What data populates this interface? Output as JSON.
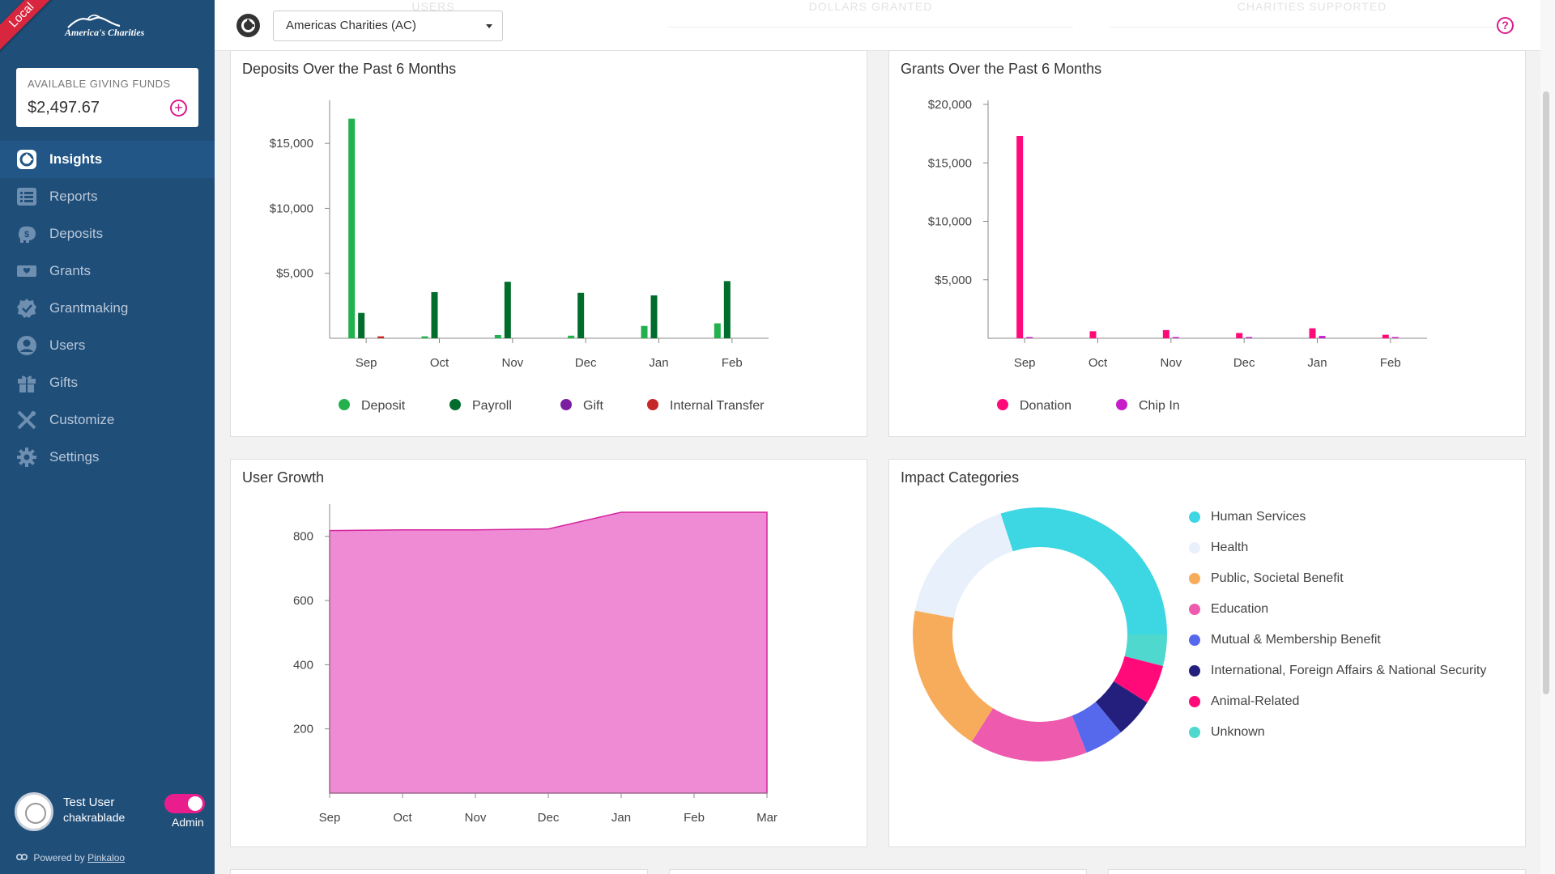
{
  "env_badge": "Local",
  "logo_text": "America's Charities",
  "funds": {
    "label": "AVAILABLE GIVING FUNDS",
    "amount": "$2,497.67"
  },
  "nav": [
    {
      "label": "Insights",
      "icon": "insights-icon",
      "active": true
    },
    {
      "label": "Reports",
      "icon": "reports-icon"
    },
    {
      "label": "Deposits",
      "icon": "deposits-icon"
    },
    {
      "label": "Grants",
      "icon": "grants-icon"
    },
    {
      "label": "Grantmaking",
      "icon": "grantmaking-icon"
    },
    {
      "label": "Users",
      "icon": "users-icon"
    },
    {
      "label": "Gifts",
      "icon": "gifts-icon"
    },
    {
      "label": "Customize",
      "icon": "customize-icon"
    },
    {
      "label": "Settings",
      "icon": "settings-icon"
    }
  ],
  "user": {
    "name": "Test User",
    "handle": "chakrablade",
    "role": "Admin"
  },
  "footer": {
    "prefix": "Powered by",
    "brand": "Pinkaloo"
  },
  "topbar": {
    "org_selected": "Americas Charities (AC)",
    "ghost_stats": [
      "USERS",
      "DOLLARS GRANTED",
      "CHARITIES SUPPORTED"
    ],
    "help_label": "?"
  },
  "colors": {
    "sidebar": "#1f4e79",
    "accent": "#e91e8c",
    "deposit": "#22b14c",
    "payroll": "#006d2c",
    "gift": "#7b1fa2",
    "internal_transfer": "#c62828",
    "donation": "#ff0a78",
    "chip_in": "#c61dc9",
    "user_growth": "#ef8ad4"
  },
  "chart_data": [
    {
      "title": "Deposits Over the Past 6 Months",
      "type": "bar",
      "categories": [
        "Sep",
        "Oct",
        "Nov",
        "Dec",
        "Jan",
        "Feb"
      ],
      "ytick_labels": [
        "$5,000",
        "$10,000",
        "$15,000"
      ],
      "ylim": [
        0,
        18000
      ],
      "yticks": [
        5000,
        10000,
        15000
      ],
      "series": [
        {
          "name": "Deposit",
          "color": "#22b14c",
          "values": [
            16900,
            150,
            250,
            200,
            950,
            1150
          ]
        },
        {
          "name": "Payroll",
          "color": "#006d2c",
          "values": [
            1950,
            3550,
            4350,
            3500,
            3300,
            4400
          ]
        },
        {
          "name": "Gift",
          "color": "#7b1fa2",
          "values": [
            0,
            0,
            0,
            0,
            0,
            0
          ]
        },
        {
          "name": "Internal Transfer",
          "color": "#c62828",
          "values": [
            150,
            0,
            0,
            0,
            0,
            0
          ]
        }
      ],
      "legend": "bottom"
    },
    {
      "title": "Grants Over the Past 6 Months",
      "type": "bar",
      "categories": [
        "Sep",
        "Oct",
        "Nov",
        "Dec",
        "Jan",
        "Feb"
      ],
      "ytick_labels": [
        "$5,000",
        "$10,000",
        "$15,000",
        "$20,000"
      ],
      "ylim": [
        0,
        20000
      ],
      "yticks": [
        5000,
        10000,
        15000,
        20000
      ],
      "series": [
        {
          "name": "Donation",
          "color": "#ff0a78",
          "values": [
            17300,
            600,
            700,
            450,
            850,
            300
          ]
        },
        {
          "name": "Chip In",
          "color": "#c61dc9",
          "values": [
            60,
            0,
            40,
            40,
            200,
            20
          ]
        }
      ],
      "legend": "bottom"
    },
    {
      "title": "User Growth",
      "type": "area",
      "x": [
        "Sep",
        "Oct",
        "Nov",
        "Dec",
        "Jan",
        "Feb",
        "Mar"
      ],
      "values": [
        818,
        820,
        820,
        823,
        875,
        875,
        875
      ],
      "yticks": [
        200,
        400,
        600,
        800
      ],
      "ylim": [
        0,
        880
      ],
      "color": "#ef8ad4",
      "line_color": "#d3249d"
    },
    {
      "title": "Impact Categories",
      "type": "pie",
      "donut": true,
      "slices": [
        {
          "label": "Human Services",
          "color": "#3dd6e3",
          "value": 30
        },
        {
          "label": "Health",
          "color": "#e8f0fb",
          "value": 17
        },
        {
          "label": "Public, Societal Benefit",
          "color": "#f7ac5c",
          "value": 19
        },
        {
          "label": "Education",
          "color": "#ee5aae",
          "value": 15
        },
        {
          "label": "Mutual & Membership Benefit",
          "color": "#5669ec",
          "value": 5
        },
        {
          "label": "International, Foreign Affairs & National Security",
          "color": "#241e7c",
          "value": 5
        },
        {
          "label": "Animal-Related",
          "color": "#ff0a78",
          "value": 5
        },
        {
          "label": "Unknown",
          "color": "#4fd8ce",
          "value": 4
        }
      ],
      "legend": "right"
    }
  ]
}
